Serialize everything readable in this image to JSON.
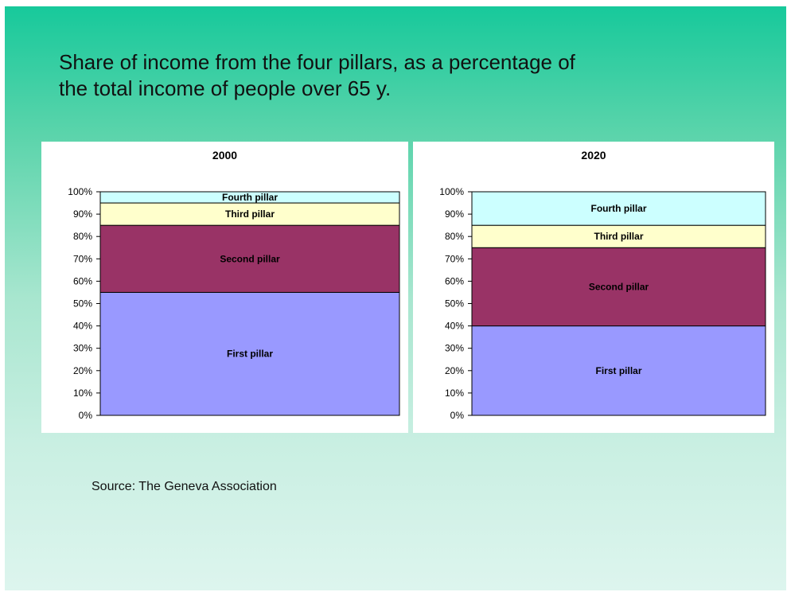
{
  "slide": {
    "title_line1": "Share of income from the four pillars, as a percentage of",
    "title_line2": "the total income of people over 65 y.",
    "source": "Source: The Geneva Association"
  },
  "chart_data": [
    {
      "type": "bar",
      "stacked": true,
      "title": "2000",
      "ylim": [
        0,
        100
      ],
      "yticks": [
        "0%",
        "10%",
        "20%",
        "30%",
        "40%",
        "50%",
        "60%",
        "70%",
        "80%",
        "90%",
        "100%"
      ],
      "series": [
        {
          "name": "First pillar",
          "values": [
            55
          ],
          "color": "#9999ff"
        },
        {
          "name": "Second pillar",
          "values": [
            30
          ],
          "color": "#993366"
        },
        {
          "name": "Third pillar",
          "values": [
            10
          ],
          "color": "#ffffcc"
        },
        {
          "name": "Fourth pillar",
          "values": [
            5
          ],
          "color": "#ccffff"
        }
      ]
    },
    {
      "type": "bar",
      "stacked": true,
      "title": "2020",
      "ylim": [
        0,
        100
      ],
      "yticks": [
        "0%",
        "10%",
        "20%",
        "30%",
        "40%",
        "50%",
        "60%",
        "70%",
        "80%",
        "90%",
        "100%"
      ],
      "series": [
        {
          "name": "First pillar",
          "values": [
            40
          ],
          "color": "#9999ff"
        },
        {
          "name": "Second pillar",
          "values": [
            35
          ],
          "color": "#993366"
        },
        {
          "name": "Third pillar",
          "values": [
            10
          ],
          "color": "#ffffcc"
        },
        {
          "name": "Fourth pillar",
          "values": [
            15
          ],
          "color": "#ccffff"
        }
      ]
    }
  ]
}
